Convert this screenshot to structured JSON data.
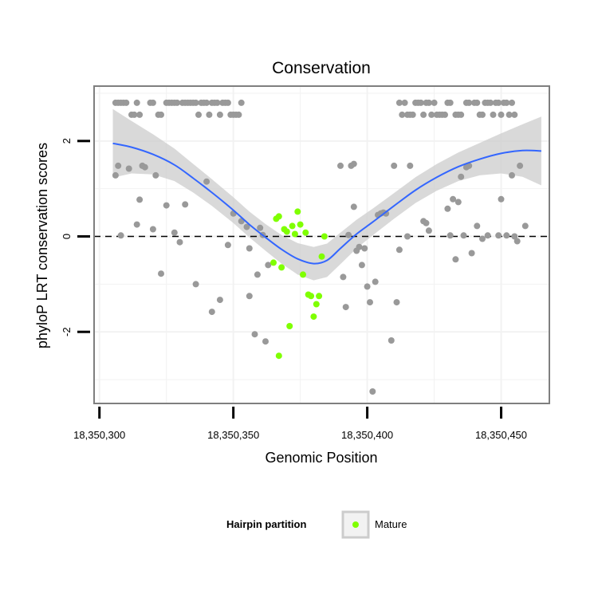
{
  "chart_data": {
    "type": "scatter",
    "title": "Conservation",
    "xlabel": "Genomic Position",
    "ylabel": "phyloP LRT conservation scores",
    "xlim": [
      18350298,
      18350468
    ],
    "ylim": [
      -3.5,
      3.15
    ],
    "x_ticks": [
      {
        "value": 18350300,
        "label": "18,350,300"
      },
      {
        "value": 18350350,
        "label": "18,350,350"
      },
      {
        "value": 18350400,
        "label": "18,350,400"
      },
      {
        "value": 18350450,
        "label": "18,350,450"
      }
    ],
    "y_ticks": [
      {
        "value": -2,
        "label": "-2"
      },
      {
        "value": 0,
        "label": "0"
      },
      {
        "value": 2,
        "label": "2"
      }
    ],
    "reference_line": {
      "y": 0,
      "style": "dashed"
    },
    "legend": {
      "title": "Hairpin partition",
      "entries": [
        {
          "name": "Mature",
          "color": "#7fff00"
        }
      ],
      "position": "bottom"
    },
    "colors": {
      "other": "#999999",
      "mature": "#7fff00",
      "smooth": "#3366ff",
      "ribbon": "#cccccc",
      "panel_border": "#7f7f7f",
      "grid": "#f2f2f2"
    },
    "series": [
      {
        "name": "Other",
        "points": [
          [
            18350306,
            2.8
          ],
          [
            18350307,
            2.8
          ],
          [
            18350308,
            2.8
          ],
          [
            18350309,
            2.8
          ],
          [
            18350310,
            2.8
          ],
          [
            18350312,
            2.55
          ],
          [
            18350313,
            2.55
          ],
          [
            18350314,
            2.8
          ],
          [
            18350315,
            2.55
          ],
          [
            18350319,
            2.8
          ],
          [
            18350320,
            2.8
          ],
          [
            18350322,
            2.55
          ],
          [
            18350323,
            2.55
          ],
          [
            18350325,
            2.8
          ],
          [
            18350326,
            2.8
          ],
          [
            18350327,
            2.8
          ],
          [
            18350328,
            2.8
          ],
          [
            18350329,
            2.8
          ],
          [
            18350331,
            2.8
          ],
          [
            18350332,
            2.8
          ],
          [
            18350333,
            2.8
          ],
          [
            18350334,
            2.8
          ],
          [
            18350335,
            2.8
          ],
          [
            18350336,
            2.8
          ],
          [
            18350337,
            2.55
          ],
          [
            18350338,
            2.8
          ],
          [
            18350339,
            2.8
          ],
          [
            18350340,
            2.8
          ],
          [
            18350341,
            2.55
          ],
          [
            18350342,
            2.8
          ],
          [
            18350343,
            2.8
          ],
          [
            18350344,
            2.8
          ],
          [
            18350345,
            2.55
          ],
          [
            18350346,
            2.8
          ],
          [
            18350347,
            2.8
          ],
          [
            18350348,
            2.8
          ],
          [
            18350349,
            2.55
          ],
          [
            18350350,
            2.55
          ],
          [
            18350351,
            2.55
          ],
          [
            18350352,
            2.55
          ],
          [
            18350353,
            2.8
          ],
          [
            18350412,
            2.8
          ],
          [
            18350413,
            2.55
          ],
          [
            18350414,
            2.8
          ],
          [
            18350415,
            2.55
          ],
          [
            18350416,
            2.55
          ],
          [
            18350417,
            2.55
          ],
          [
            18350418,
            2.8
          ],
          [
            18350419,
            2.8
          ],
          [
            18350420,
            2.8
          ],
          [
            18350421,
            2.55
          ],
          [
            18350422,
            2.8
          ],
          [
            18350423,
            2.8
          ],
          [
            18350424,
            2.55
          ],
          [
            18350425,
            2.8
          ],
          [
            18350426,
            2.55
          ],
          [
            18350427,
            2.55
          ],
          [
            18350428,
            2.55
          ],
          [
            18350429,
            2.55
          ],
          [
            18350430,
            2.8
          ],
          [
            18350431,
            2.8
          ],
          [
            18350433,
            2.55
          ],
          [
            18350434,
            2.55
          ],
          [
            18350435,
            2.55
          ],
          [
            18350437,
            2.8
          ],
          [
            18350438,
            2.8
          ],
          [
            18350440,
            2.8
          ],
          [
            18350441,
            2.8
          ],
          [
            18350442,
            2.55
          ],
          [
            18350443,
            2.55
          ],
          [
            18350444,
            2.8
          ],
          [
            18350445,
            2.8
          ],
          [
            18350446,
            2.8
          ],
          [
            18350447,
            2.55
          ],
          [
            18350448,
            2.8
          ],
          [
            18350449,
            2.8
          ],
          [
            18350450,
            2.55
          ],
          [
            18350451,
            2.8
          ],
          [
            18350452,
            2.8
          ],
          [
            18350453,
            2.55
          ],
          [
            18350454,
            2.8
          ],
          [
            18350455,
            2.55
          ],
          [
            18350306,
            1.28
          ],
          [
            18350307,
            1.48
          ],
          [
            18350308,
            0.02
          ],
          [
            18350311,
            1.42
          ],
          [
            18350314,
            0.25
          ],
          [
            18350315,
            0.77
          ],
          [
            18350316,
            1.48
          ],
          [
            18350317,
            1.45
          ],
          [
            18350320,
            0.15
          ],
          [
            18350321,
            1.28
          ],
          [
            18350323,
            -0.78
          ],
          [
            18350325,
            0.65
          ],
          [
            18350328,
            0.08
          ],
          [
            18350330,
            -0.12
          ],
          [
            18350332,
            0.67
          ],
          [
            18350336,
            -1.0
          ],
          [
            18350340,
            1.15
          ],
          [
            18350342,
            -1.58
          ],
          [
            18350345,
            -1.33
          ],
          [
            18350348,
            -0.18
          ],
          [
            18350350,
            0.48
          ],
          [
            18350353,
            0.32
          ],
          [
            18350355,
            0.2
          ],
          [
            18350356,
            -0.25
          ],
          [
            18350356,
            -1.25
          ],
          [
            18350358,
            -2.05
          ],
          [
            18350359,
            -0.8
          ],
          [
            18350360,
            0.18
          ],
          [
            18350361,
            0.03
          ],
          [
            18350362,
            -2.2
          ],
          [
            18350363,
            -0.6
          ],
          [
            18350390,
            1.48
          ],
          [
            18350391,
            -0.85
          ],
          [
            18350392,
            -1.48
          ],
          [
            18350393,
            0.03
          ],
          [
            18350394,
            1.48
          ],
          [
            18350395,
            1.52
          ],
          [
            18350395,
            0.62
          ],
          [
            18350396,
            -0.3
          ],
          [
            18350397,
            -0.22
          ],
          [
            18350398,
            -0.6
          ],
          [
            18350399,
            -0.25
          ],
          [
            18350400,
            -1.05
          ],
          [
            18350401,
            -1.38
          ],
          [
            18350402,
            -3.25
          ],
          [
            18350403,
            -0.95
          ],
          [
            18350404,
            0.45
          ],
          [
            18350405,
            0.48
          ],
          [
            18350406,
            0.5
          ],
          [
            18350407,
            0.48
          ],
          [
            18350409,
            -2.18
          ],
          [
            18350410,
            1.48
          ],
          [
            18350411,
            -1.38
          ],
          [
            18350412,
            -0.28
          ],
          [
            18350415,
            0.0
          ],
          [
            18350416,
            1.48
          ],
          [
            18350421,
            0.32
          ],
          [
            18350422,
            0.28
          ],
          [
            18350423,
            0.12
          ],
          [
            18350430,
            0.58
          ],
          [
            18350431,
            0.02
          ],
          [
            18350432,
            0.78
          ],
          [
            18350433,
            -0.48
          ],
          [
            18350434,
            0.72
          ],
          [
            18350435,
            1.25
          ],
          [
            18350436,
            0.02
          ],
          [
            18350437,
            1.45
          ],
          [
            18350438,
            1.48
          ],
          [
            18350439,
            -0.35
          ],
          [
            18350441,
            0.22
          ],
          [
            18350443,
            -0.05
          ],
          [
            18350445,
            0.02
          ],
          [
            18350449,
            0.02
          ],
          [
            18350450,
            0.78
          ],
          [
            18350452,
            0.02
          ],
          [
            18350454,
            1.28
          ],
          [
            18350455,
            0.0
          ],
          [
            18350456,
            -0.1
          ],
          [
            18350457,
            1.48
          ],
          [
            18350459,
            0.22
          ]
        ]
      },
      {
        "name": "Mature",
        "points": [
          [
            18350365,
            -0.55
          ],
          [
            18350366,
            0.37
          ],
          [
            18350367,
            0.42
          ],
          [
            18350368,
            -0.65
          ],
          [
            18350369,
            0.15
          ],
          [
            18350370,
            0.1
          ],
          [
            18350371,
            -1.88
          ],
          [
            18350372,
            0.22
          ],
          [
            18350373,
            0.05
          ],
          [
            18350374,
            0.52
          ],
          [
            18350375,
            0.25
          ],
          [
            18350376,
            -0.8
          ],
          [
            18350377,
            0.08
          ],
          [
            18350378,
            -1.22
          ],
          [
            18350379,
            -1.25
          ],
          [
            18350380,
            -1.68
          ],
          [
            18350381,
            -1.42
          ],
          [
            18350382,
            -1.25
          ],
          [
            18350383,
            -0.42
          ],
          [
            18350384,
            0.0
          ],
          [
            18350367,
            -2.5
          ]
        ]
      }
    ],
    "smooth": {
      "x": [
        18350305,
        18350312,
        18350320,
        18350328,
        18350335,
        18350342,
        18350350,
        18350356,
        18350362,
        18350368,
        18350374,
        18350380,
        18350385,
        18350390,
        18350396,
        18350402,
        18350410,
        18350418,
        18350426,
        18350434,
        18350442,
        18350450,
        18350458,
        18350465
      ],
      "y": [
        1.95,
        1.87,
        1.72,
        1.5,
        1.22,
        0.92,
        0.55,
        0.25,
        -0.02,
        -0.27,
        -0.47,
        -0.57,
        -0.5,
        -0.25,
        0.05,
        0.3,
        0.64,
        0.97,
        1.24,
        1.46,
        1.62,
        1.74,
        1.8,
        1.79
      ],
      "se": [
        0.72,
        0.55,
        0.42,
        0.34,
        0.3,
        0.28,
        0.27,
        0.27,
        0.28,
        0.3,
        0.33,
        0.35,
        0.35,
        0.33,
        0.3,
        0.28,
        0.27,
        0.27,
        0.28,
        0.3,
        0.34,
        0.42,
        0.55,
        0.72
      ]
    }
  }
}
